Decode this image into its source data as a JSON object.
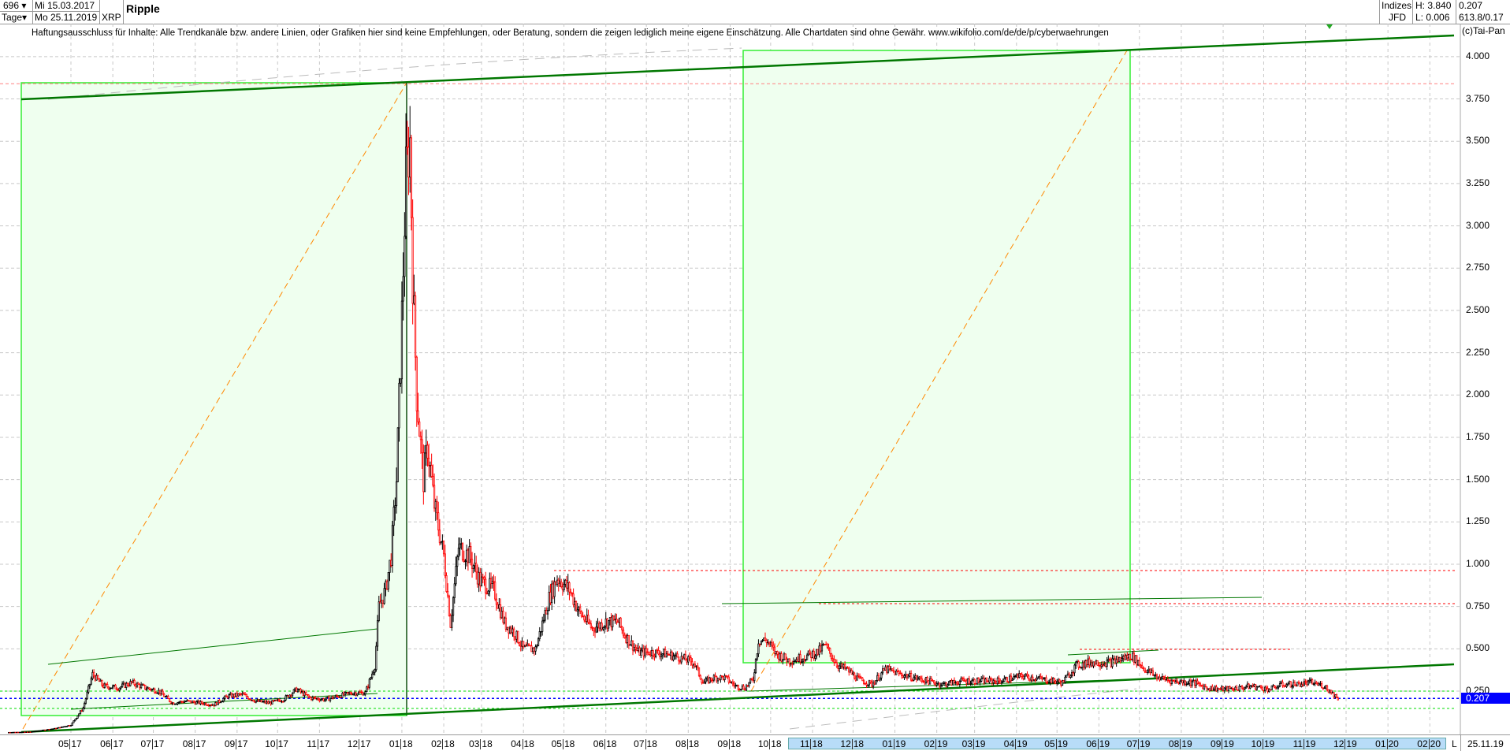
{
  "header": {
    "bars": "696",
    "bars_dropdown": "▾",
    "period": "Tage",
    "period_dropdown": "▾",
    "date_from": "Mi 15.03.2017",
    "date_to": "Mo 25.11.2019",
    "symbol": "XRP",
    "title": "Ripple",
    "market_top": "Indizes",
    "market_bottom": "JFD",
    "high": "H: 3.840",
    "low": "L: 0.006",
    "last": "0.207",
    "extra": "613.8/0.17"
  },
  "disclaimer": "Haftungsausschluss für Inhalte: Alle Trendkanäle bzw. andere Linien, oder Grafiken hier sind keine Empfehlungen, oder Beratung, sondern die zeigen lediglich meine eigene Einschätzung. Alle Chartdaten sind ohne Gewähr.  www.wikifolio.com/de/de/p/cyberwaehrungen",
  "copyright": "(c)Tai-Pan",
  "colors": {
    "up": "#000000",
    "down": "#ff0000",
    "box_fill": "#efffef",
    "box_border": "#33ee33",
    "trend": "#007700",
    "current": "#0000ff"
  },
  "time_axis": {
    "end_flag": "L",
    "end_date": "25.11.19"
  },
  "chart_data": {
    "type": "candlestick",
    "ylim": [
      0,
      4.1
    ],
    "yticks": [
      "0.250",
      "0.500",
      "0.750",
      "1.000",
      "1.250",
      "1.500",
      "1.750",
      "2.000",
      "2.250",
      "2.500",
      "2.750",
      "3.000",
      "3.250",
      "3.500",
      "3.750",
      "4.000"
    ],
    "xticks": [
      [
        "05",
        "17",
        "2017-05-01"
      ],
      [
        "06",
        "17",
        "2017-06-01"
      ],
      [
        "07",
        "17",
        "2017-07-01"
      ],
      [
        "08",
        "17",
        "2017-08-01"
      ],
      [
        "09",
        "17",
        "2017-09-01"
      ],
      [
        "10",
        "17",
        "2017-10-01"
      ],
      [
        "11",
        "17",
        "2017-11-01"
      ],
      [
        "12",
        "17",
        "2017-12-01"
      ],
      [
        "01",
        "18",
        "2018-01-01"
      ],
      [
        "02",
        "18",
        "2018-02-01"
      ],
      [
        "03",
        "18",
        "2018-03-01"
      ],
      [
        "04",
        "18",
        "2018-04-01"
      ],
      [
        "05",
        "18",
        "2018-05-01"
      ],
      [
        "06",
        "18",
        "2018-06-01"
      ],
      [
        "07",
        "18",
        "2018-07-01"
      ],
      [
        "08",
        "18",
        "2018-08-01"
      ],
      [
        "09",
        "18",
        "2018-09-01"
      ],
      [
        "10",
        "18",
        "2018-10-01"
      ],
      [
        "11",
        "18",
        "2018-11-01"
      ],
      [
        "12",
        "18",
        "2018-12-01"
      ],
      [
        "01",
        "19",
        "2019-01-01"
      ],
      [
        "02",
        "19",
        "2019-02-01"
      ],
      [
        "03",
        "19",
        "2019-03-01"
      ],
      [
        "04",
        "19",
        "2019-04-01"
      ],
      [
        "05",
        "19",
        "2019-05-01"
      ],
      [
        "06",
        "19",
        "2019-06-01"
      ],
      [
        "07",
        "19",
        "2019-07-01"
      ],
      [
        "08",
        "19",
        "2019-08-01"
      ],
      [
        "09",
        "19",
        "2019-09-01"
      ],
      [
        "10",
        "19",
        "2019-10-01"
      ],
      [
        "11",
        "19",
        "2019-11-01"
      ],
      [
        "12",
        "19",
        "2019-12-01"
      ],
      [
        "01",
        "20",
        "2020-01-01"
      ],
      [
        "02",
        "20",
        "2020-02-01"
      ]
    ],
    "current_price": 0.207,
    "high": 3.84,
    "low": 0.006,
    "closes": [
      [
        "2017-03-15",
        0.006
      ],
      [
        "2017-04-01",
        0.009
      ],
      [
        "2017-04-20",
        0.03
      ],
      [
        "2017-05-01",
        0.05
      ],
      [
        "2017-05-10",
        0.15
      ],
      [
        "2017-05-17",
        0.35
      ],
      [
        "2017-05-25",
        0.28
      ],
      [
        "2017-06-05",
        0.27
      ],
      [
        "2017-06-15",
        0.3
      ],
      [
        "2017-06-25",
        0.27
      ],
      [
        "2017-07-05",
        0.25
      ],
      [
        "2017-07-15",
        0.18
      ],
      [
        "2017-07-25",
        0.19
      ],
      [
        "2017-08-05",
        0.18
      ],
      [
        "2017-08-15",
        0.17
      ],
      [
        "2017-08-25",
        0.22
      ],
      [
        "2017-09-05",
        0.23
      ],
      [
        "2017-09-15",
        0.19
      ],
      [
        "2017-09-25",
        0.18
      ],
      [
        "2017-10-05",
        0.2
      ],
      [
        "2017-10-15",
        0.26
      ],
      [
        "2017-10-25",
        0.21
      ],
      [
        "2017-11-05",
        0.2
      ],
      [
        "2017-11-15",
        0.22
      ],
      [
        "2017-11-25",
        0.24
      ],
      [
        "2017-12-05",
        0.24
      ],
      [
        "2017-12-12",
        0.4
      ],
      [
        "2017-12-15",
        0.75
      ],
      [
        "2017-12-20",
        0.85
      ],
      [
        "2017-12-24",
        1.05
      ],
      [
        "2017-12-28",
        1.5
      ],
      [
        "2017-12-31",
        2.2
      ],
      [
        "2018-01-04",
        3.3
      ],
      [
        "2018-01-07",
        3.5
      ],
      [
        "2018-01-09",
        2.7
      ],
      [
        "2018-01-12",
        2.0
      ],
      [
        "2018-01-17",
        1.5
      ],
      [
        "2018-01-20",
        1.7
      ],
      [
        "2018-01-25",
        1.35
      ],
      [
        "2018-02-01",
        1.05
      ],
      [
        "2018-02-06",
        0.65
      ],
      [
        "2018-02-12",
        1.1
      ],
      [
        "2018-02-20",
        1.05
      ],
      [
        "2018-02-28",
        0.9
      ],
      [
        "2018-03-10",
        0.85
      ],
      [
        "2018-03-18",
        0.65
      ],
      [
        "2018-03-25",
        0.6
      ],
      [
        "2018-04-01",
        0.5
      ],
      [
        "2018-04-10",
        0.5
      ],
      [
        "2018-04-20",
        0.8
      ],
      [
        "2018-04-26",
        0.92
      ],
      [
        "2018-05-05",
        0.85
      ],
      [
        "2018-05-12",
        0.72
      ],
      [
        "2018-05-22",
        0.62
      ],
      [
        "2018-06-01",
        0.66
      ],
      [
        "2018-06-10",
        0.66
      ],
      [
        "2018-06-15",
        0.58
      ],
      [
        "2018-06-25",
        0.48
      ],
      [
        "2018-07-05",
        0.48
      ],
      [
        "2018-07-15",
        0.47
      ],
      [
        "2018-07-25",
        0.45
      ],
      [
        "2018-08-05",
        0.42
      ],
      [
        "2018-08-12",
        0.3
      ],
      [
        "2018-08-20",
        0.33
      ],
      [
        "2018-08-28",
        0.33
      ],
      [
        "2018-09-05",
        0.28
      ],
      [
        "2018-09-12",
        0.27
      ],
      [
        "2018-09-18",
        0.32
      ],
      [
        "2018-09-22",
        0.55
      ],
      [
        "2018-09-28",
        0.55
      ],
      [
        "2018-10-05",
        0.47
      ],
      [
        "2018-10-15",
        0.43
      ],
      [
        "2018-10-25",
        0.45
      ],
      [
        "2018-11-05",
        0.48
      ],
      [
        "2018-11-10",
        0.52
      ],
      [
        "2018-11-20",
        0.4
      ],
      [
        "2018-11-26",
        0.38
      ],
      [
        "2018-12-05",
        0.32
      ],
      [
        "2018-12-15",
        0.29
      ],
      [
        "2018-12-25",
        0.38
      ],
      [
        "2019-01-05",
        0.35
      ],
      [
        "2019-01-20",
        0.32
      ],
      [
        "2019-02-05",
        0.29
      ],
      [
        "2019-02-20",
        0.31
      ],
      [
        "2019-03-05",
        0.31
      ],
      [
        "2019-03-20",
        0.31
      ],
      [
        "2019-04-05",
        0.34
      ],
      [
        "2019-04-20",
        0.32
      ],
      [
        "2019-05-05",
        0.3
      ],
      [
        "2019-05-15",
        0.4
      ],
      [
        "2019-05-25",
        0.42
      ],
      [
        "2019-06-10",
        0.42
      ],
      [
        "2019-06-25",
        0.46
      ],
      [
        "2019-07-05",
        0.38
      ],
      [
        "2019-07-15",
        0.33
      ],
      [
        "2019-07-25",
        0.31
      ],
      [
        "2019-08-10",
        0.3
      ],
      [
        "2019-08-20",
        0.27
      ],
      [
        "2019-09-01",
        0.26
      ],
      [
        "2019-09-15",
        0.27
      ],
      [
        "2019-09-22",
        0.28
      ],
      [
        "2019-10-05",
        0.26
      ],
      [
        "2019-10-15",
        0.29
      ],
      [
        "2019-10-25",
        0.29
      ],
      [
        "2019-11-05",
        0.3
      ],
      [
        "2019-11-15",
        0.28
      ],
      [
        "2019-11-25",
        0.207
      ]
    ]
  }
}
